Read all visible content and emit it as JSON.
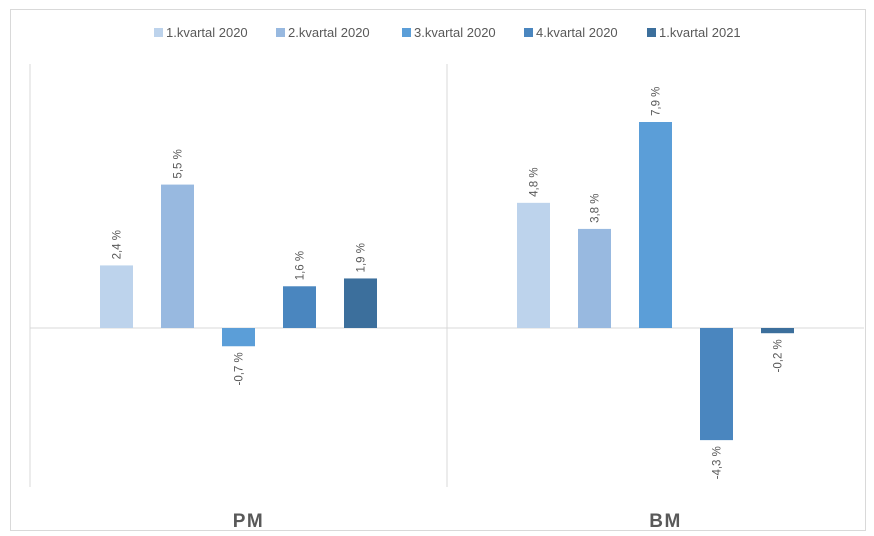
{
  "chart_data": {
    "type": "bar",
    "categories": [
      "PM",
      "BM"
    ],
    "series": [
      {
        "name": "1.kvartal 2020",
        "values": [
          2.4,
          4.8
        ],
        "labels": [
          "2,4 %",
          "4,8 %"
        ],
        "color": "#bdd3ec"
      },
      {
        "name": "2.kvartal 2020",
        "values": [
          5.5,
          3.8
        ],
        "labels": [
          "5,5 %",
          "3,8 %"
        ],
        "color": "#98b9e0"
      },
      {
        "name": "3.kvartal 2020",
        "values": [
          -0.7,
          7.9
        ],
        "labels": [
          "-0,7 %",
          "7,9 %"
        ],
        "color": "#5b9ed8"
      },
      {
        "name": "4.kvartal 2020",
        "values": [
          1.6,
          -4.3
        ],
        "labels": [
          "1,6 %",
          "-4,3 %"
        ],
        "color": "#4a86bf"
      },
      {
        "name": "1.kvartal 2021",
        "values": [
          1.9,
          -0.2
        ],
        "labels": [
          "1,9 %",
          "-0,2 %"
        ],
        "color": "#3c6f9c"
      }
    ],
    "ylim": [
      -6.1,
      10.2
    ],
    "grid": false,
    "legend_position": "top",
    "axis_color": "#d9d9d9",
    "text_color": "#595959"
  }
}
